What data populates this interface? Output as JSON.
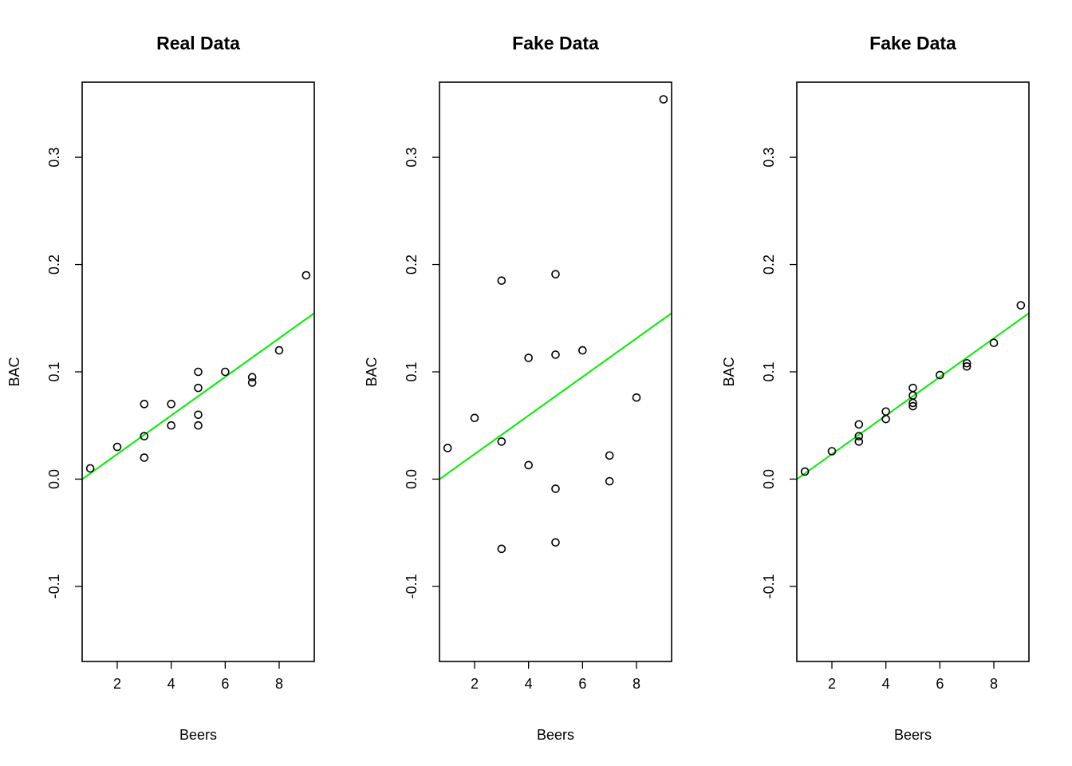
{
  "chart_data": [
    {
      "type": "scatter",
      "title": "Real Data",
      "xlabel": "Beers",
      "ylabel": "BAC",
      "xlim": [
        0.7,
        9.3
      ],
      "ylim": [
        -0.17,
        0.37
      ],
      "xticks": [
        2,
        4,
        6,
        8
      ],
      "yticks": [
        -0.1,
        0.0,
        0.1,
        0.2,
        0.3
      ],
      "ytick_labels": [
        "-0.1",
        "0.0",
        "0.1",
        "0.2",
        "0.3"
      ],
      "grid": false,
      "fit_line": {
        "intercept": -0.0127,
        "slope": 0.018,
        "color": "#00ee00"
      },
      "points": [
        {
          "x": 1,
          "y": 0.01
        },
        {
          "x": 2,
          "y": 0.03
        },
        {
          "x": 3,
          "y": 0.07
        },
        {
          "x": 3,
          "y": 0.04
        },
        {
          "x": 3,
          "y": 0.02
        },
        {
          "x": 4,
          "y": 0.07
        },
        {
          "x": 4,
          "y": 0.05
        },
        {
          "x": 5,
          "y": 0.1
        },
        {
          "x": 5,
          "y": 0.085
        },
        {
          "x": 5,
          "y": 0.06
        },
        {
          "x": 5,
          "y": 0.05
        },
        {
          "x": 6,
          "y": 0.1
        },
        {
          "x": 7,
          "y": 0.095
        },
        {
          "x": 7,
          "y": 0.09
        },
        {
          "x": 8,
          "y": 0.12
        },
        {
          "x": 9,
          "y": 0.19
        }
      ]
    },
    {
      "type": "scatter",
      "title": "Fake Data",
      "xlabel": "Beers",
      "ylabel": "BAC",
      "xlim": [
        0.7,
        9.3
      ],
      "ylim": [
        -0.17,
        0.37
      ],
      "xticks": [
        2,
        4,
        6,
        8
      ],
      "yticks": [
        -0.1,
        0.0,
        0.1,
        0.2,
        0.3
      ],
      "ytick_labels": [
        "-0.1",
        "0.0",
        "0.1",
        "0.2",
        "0.3"
      ],
      "grid": false,
      "fit_line": {
        "intercept": -0.0127,
        "slope": 0.018,
        "color": "#00ee00"
      },
      "points": [
        {
          "x": 1,
          "y": 0.029
        },
        {
          "x": 2,
          "y": 0.057
        },
        {
          "x": 3,
          "y": 0.185
        },
        {
          "x": 3,
          "y": 0.035
        },
        {
          "x": 3,
          "y": -0.065
        },
        {
          "x": 4,
          "y": 0.113
        },
        {
          "x": 4,
          "y": 0.013
        },
        {
          "x": 5,
          "y": 0.191
        },
        {
          "x": 5,
          "y": 0.116
        },
        {
          "x": 5,
          "y": -0.009
        },
        {
          "x": 5,
          "y": -0.059
        },
        {
          "x": 6,
          "y": 0.12
        },
        {
          "x": 7,
          "y": 0.022
        },
        {
          "x": 7,
          "y": -0.002
        },
        {
          "x": 8,
          "y": 0.076
        },
        {
          "x": 9,
          "y": 0.354
        }
      ]
    },
    {
      "type": "scatter",
      "title": "Fake Data",
      "xlabel": "Beers",
      "ylabel": "BAC",
      "xlim": [
        0.7,
        9.3
      ],
      "ylim": [
        -0.17,
        0.37
      ],
      "xticks": [
        2,
        4,
        6,
        8
      ],
      "yticks": [
        -0.1,
        0.0,
        0.1,
        0.2,
        0.3
      ],
      "ytick_labels": [
        "-0.1",
        "0.0",
        "0.1",
        "0.2",
        "0.3"
      ],
      "grid": false,
      "fit_line": {
        "intercept": -0.0127,
        "slope": 0.018,
        "color": "#00ee00"
      },
      "points": [
        {
          "x": 1,
          "y": 0.007
        },
        {
          "x": 2,
          "y": 0.026
        },
        {
          "x": 3,
          "y": 0.051
        },
        {
          "x": 3,
          "y": 0.04
        },
        {
          "x": 3,
          "y": 0.035
        },
        {
          "x": 4,
          "y": 0.063
        },
        {
          "x": 4,
          "y": 0.056
        },
        {
          "x": 5,
          "y": 0.085
        },
        {
          "x": 5,
          "y": 0.078
        },
        {
          "x": 5,
          "y": 0.071
        },
        {
          "x": 5,
          "y": 0.068
        },
        {
          "x": 6,
          "y": 0.097
        },
        {
          "x": 7,
          "y": 0.108
        },
        {
          "x": 7,
          "y": 0.105
        },
        {
          "x": 8,
          "y": 0.127
        },
        {
          "x": 9,
          "y": 0.162
        }
      ]
    }
  ]
}
